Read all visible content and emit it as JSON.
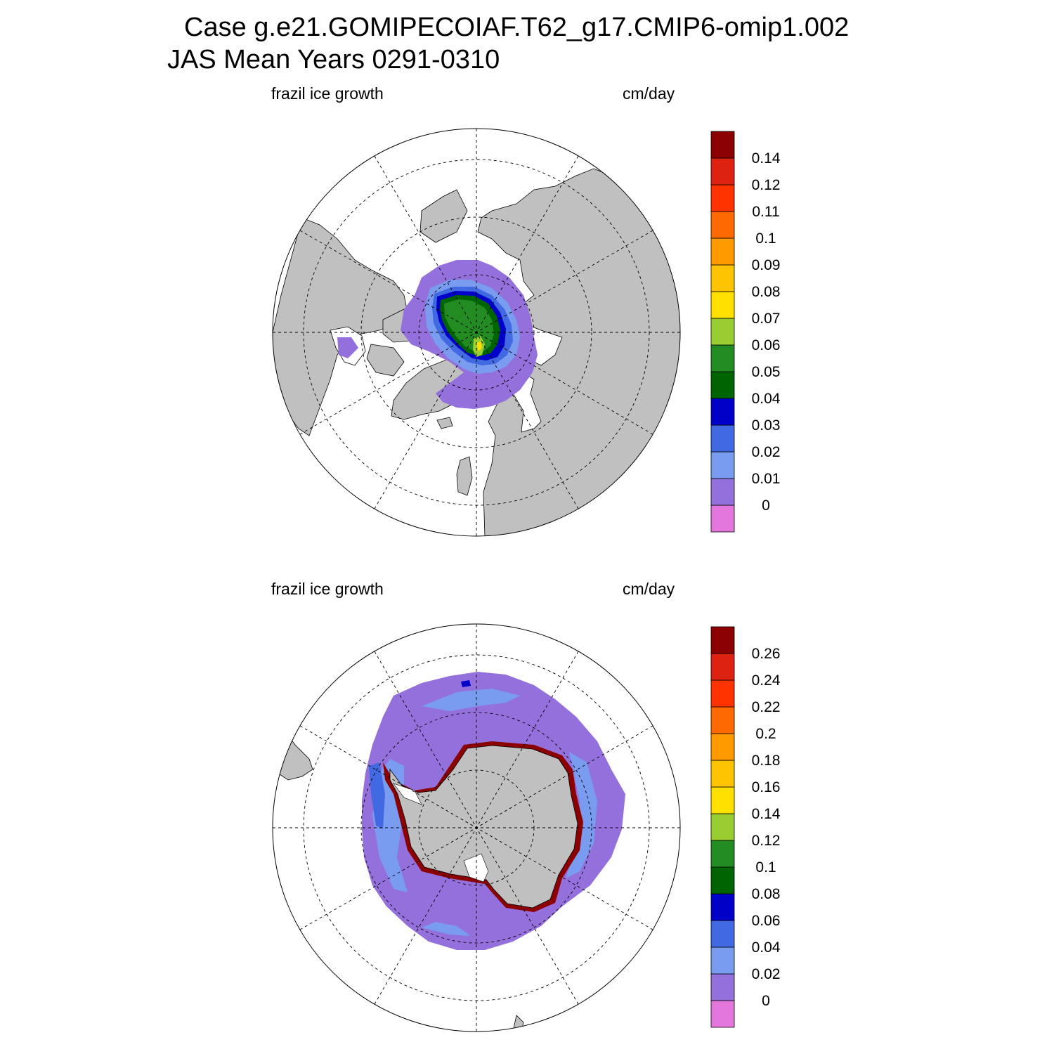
{
  "header": {
    "title_line1": "Case g.e21.GOMIPECOIAF.T62_g17.CMIP6-omip1.002",
    "title_line2": "JAS Mean   Years 0291-0310"
  },
  "panels": [
    {
      "id": "nh",
      "hemisphere": "north",
      "left_label": "frazil ice growth",
      "right_label": "cm/day",
      "colorbar": {
        "colors": [
          "#e377db",
          "#9370db",
          "#7a9cf0",
          "#4169e1",
          "#0000c8",
          "#006400",
          "#228b22",
          "#9acd32",
          "#ffe000",
          "#ffc400",
          "#ff9a00",
          "#ff6a00",
          "#ff3300",
          "#dd2211",
          "#8b0000"
        ],
        "labels": [
          "0",
          "0.01",
          "0.02",
          "0.03",
          "0.04",
          "0.05",
          "0.06",
          "0.07",
          "0.08",
          "0.09",
          "0.1",
          "0.11",
          "0.12",
          "0.14"
        ]
      }
    },
    {
      "id": "sh",
      "hemisphere": "south",
      "left_label": "frazil ice growth",
      "right_label": "cm/day",
      "colorbar": {
        "colors": [
          "#e377db",
          "#9370db",
          "#7a9cf0",
          "#4169e1",
          "#0000c8",
          "#006400",
          "#228b22",
          "#9acd32",
          "#ffe000",
          "#ffc400",
          "#ff9a00",
          "#ff6a00",
          "#ff3300",
          "#dd2211",
          "#8b0000"
        ],
        "labels": [
          "0",
          "0.02",
          "0.04",
          "0.06",
          "0.08",
          "0.1",
          "0.12",
          "0.14",
          "0.16",
          "0.18",
          "0.2",
          "0.22",
          "0.24",
          "0.26"
        ]
      }
    }
  ],
  "map_style": {
    "land_color": "#c0c0c0",
    "ocean_color": "#ffffff",
    "grid_style": "dashed"
  }
}
